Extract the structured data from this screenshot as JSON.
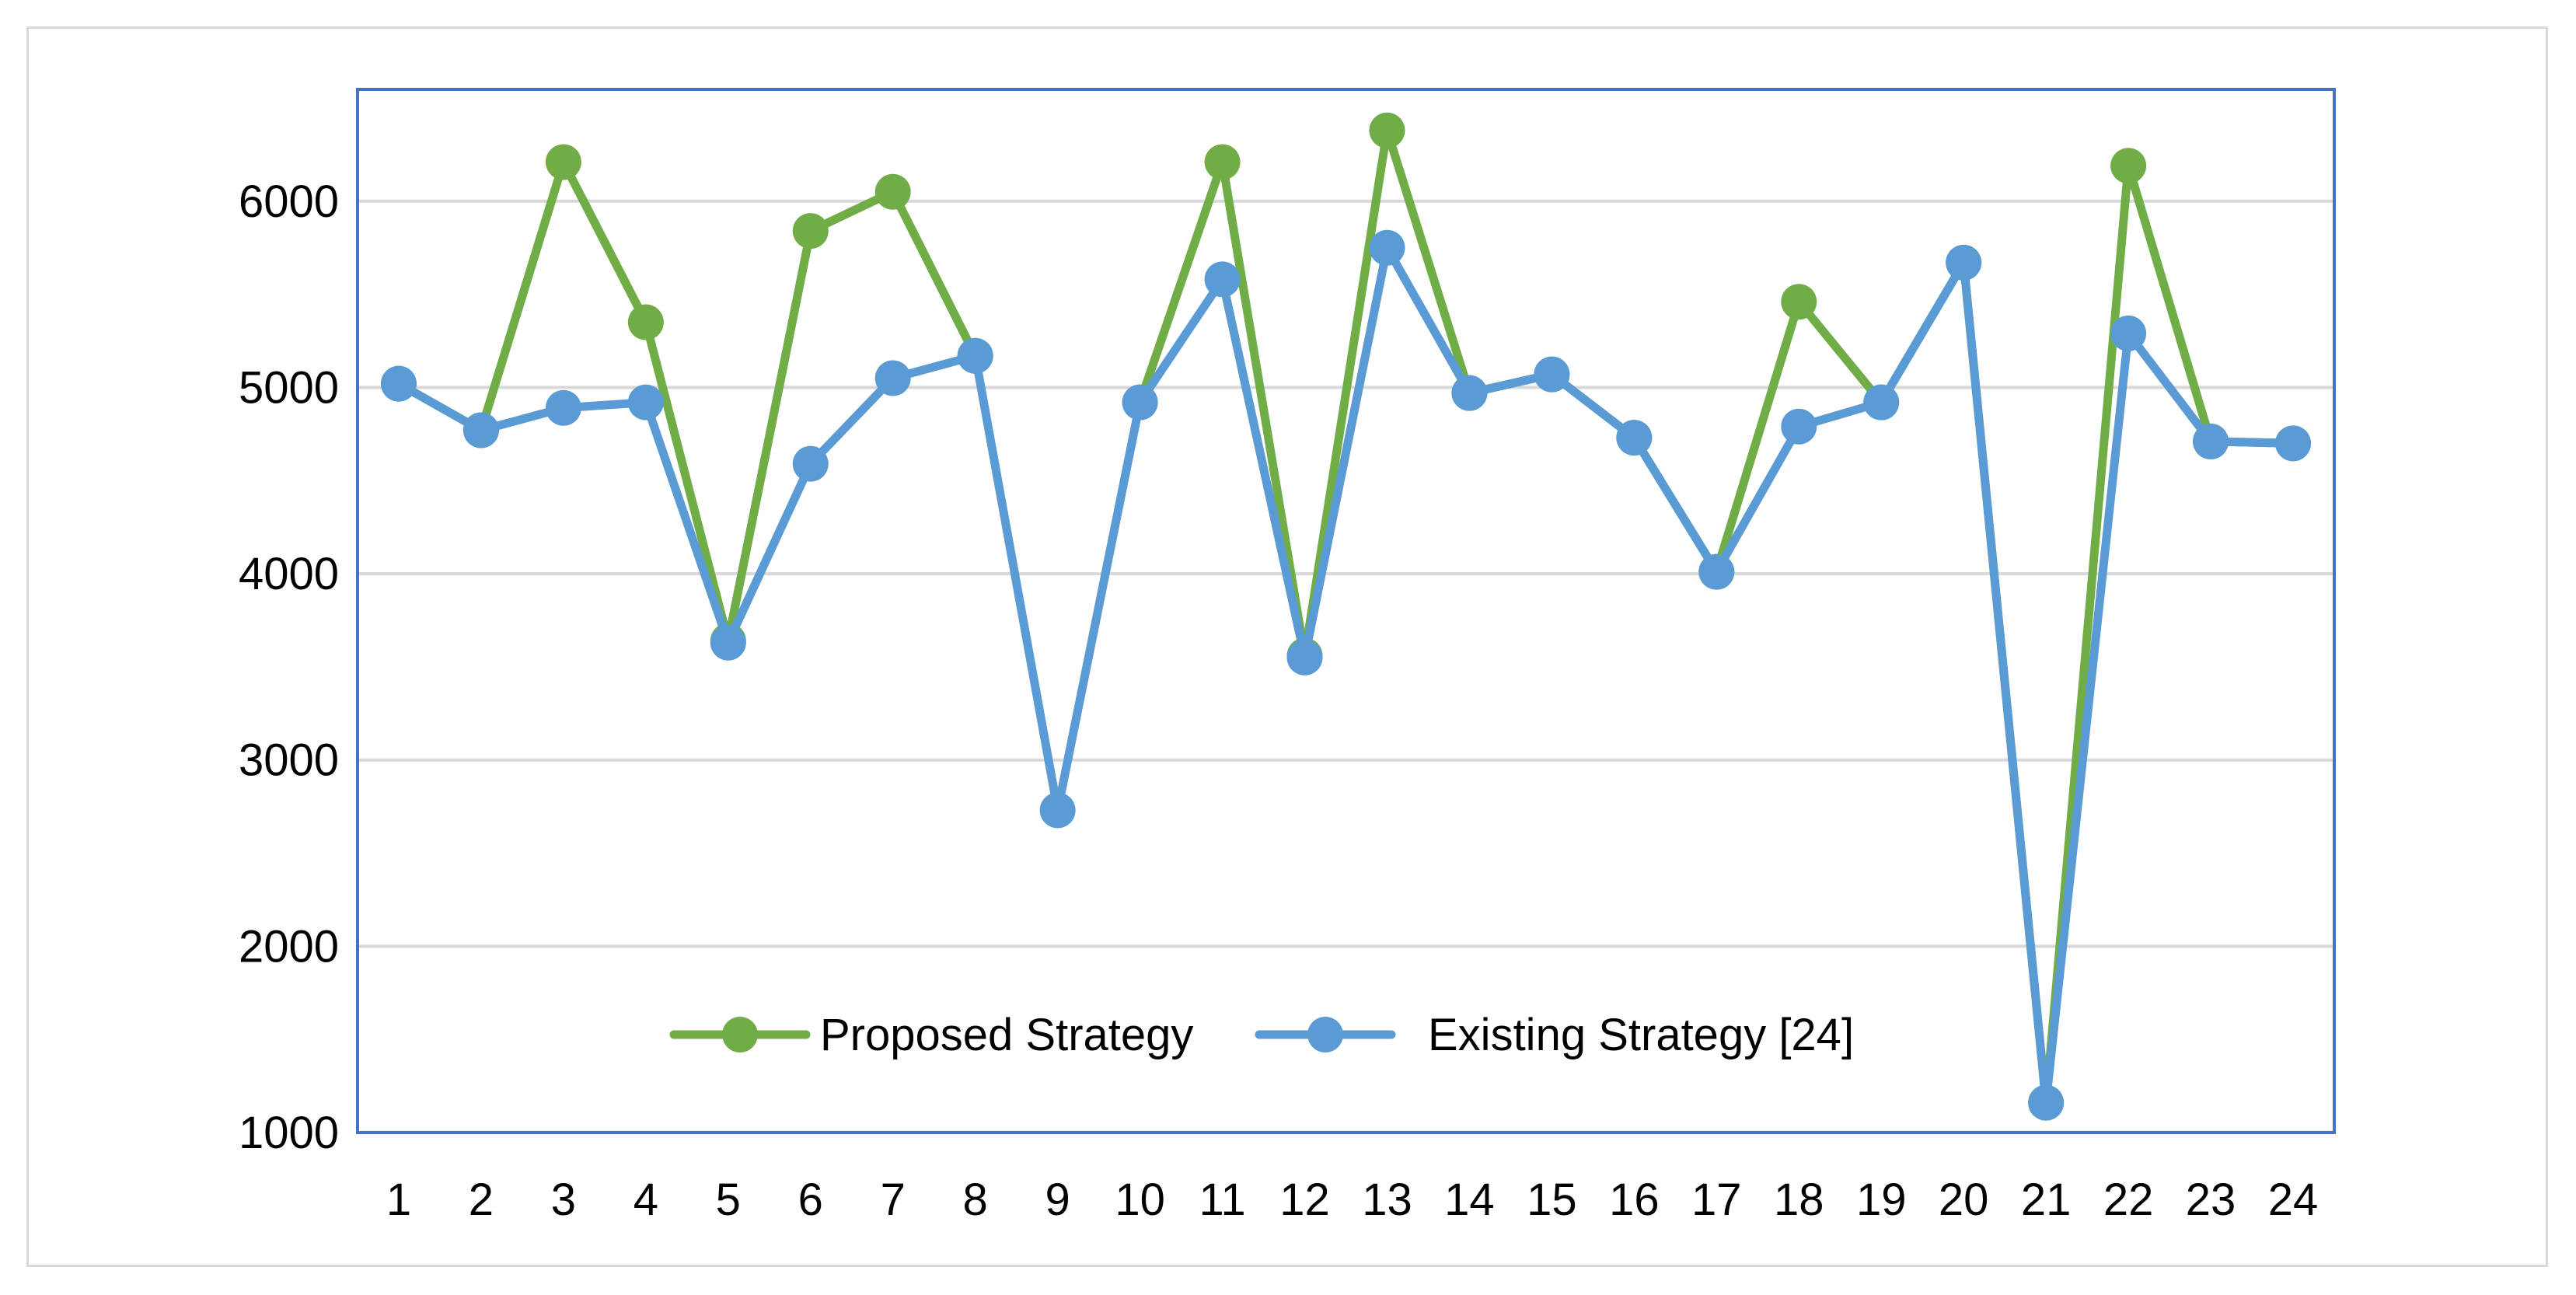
{
  "chart_data": {
    "type": "line",
    "title": "",
    "xlabel": "",
    "ylabel": "",
    "x": [
      1,
      2,
      3,
      4,
      5,
      6,
      7,
      8,
      9,
      10,
      11,
      12,
      13,
      14,
      15,
      16,
      17,
      18,
      19,
      20,
      21,
      22,
      23,
      24
    ],
    "ylim": [
      1000,
      6600
    ],
    "yticks": [
      1000,
      2000,
      3000,
      4000,
      5000,
      6000
    ],
    "grid": "horizontal",
    "legend": "bottom-center",
    "series": [
      {
        "name": "Proposed Strategy",
        "color": "#70ad47",
        "values": [
          5020,
          4770,
          6210,
          5350,
          3640,
          5840,
          6050,
          5170,
          null,
          4920,
          6210,
          3560,
          6380,
          4970,
          5070,
          4730,
          4010,
          5460,
          4920,
          5670,
          1160,
          6190,
          4710,
          4700
        ]
      },
      {
        "name": "Existing Strategy [24]",
        "color": "#5b9bd5",
        "values": [
          5020,
          4770,
          4890,
          4920,
          3630,
          4590,
          5050,
          5170,
          2730,
          4920,
          5580,
          3550,
          5750,
          4970,
          5070,
          4730,
          4010,
          4790,
          4920,
          5670,
          1160,
          5290,
          4710,
          4700
        ]
      }
    ]
  }
}
